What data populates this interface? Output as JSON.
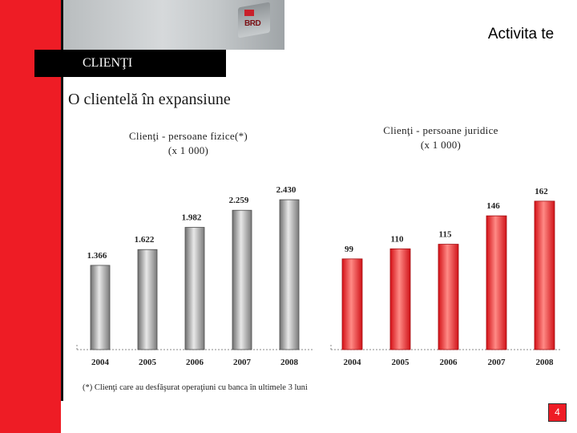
{
  "header": {
    "section_label": "CLIENŢI",
    "activity_title": "Activita te",
    "photo_brand": "BRD"
  },
  "main_title": "O clientelă în expansiune",
  "footnote": "(*) Clienţi care au desfăşurat operaţiuni cu banca în ultimele 3 luni",
  "page_number": "4",
  "colors": {
    "red": "#ee1c25",
    "gray_bar": "#8c8c8c"
  },
  "chart_data": [
    {
      "type": "bar",
      "title": "Clienţi - persoane fizice(*)",
      "subtitle": "(x 1 000)",
      "categories": [
        "2004",
        "2005",
        "2006",
        "2007",
        "2008"
      ],
      "values": [
        1366,
        1622,
        1982,
        2259,
        2430
      ],
      "value_labels": [
        "1.366",
        "1.622",
        "1.982",
        "2.259",
        "2.430"
      ],
      "ylim": [
        0,
        2600
      ],
      "color": "gray",
      "grid": false
    },
    {
      "type": "bar",
      "title": "Clienţi - persoane juridice",
      "subtitle": "(x 1 000)",
      "categories": [
        "2004",
        "2005",
        "2006",
        "2007",
        "2008"
      ],
      "values": [
        99,
        110,
        115,
        146,
        162
      ],
      "value_labels": [
        "99",
        "110",
        "115",
        "146",
        "162"
      ],
      "ylim": [
        0,
        175
      ],
      "color": "red",
      "grid": false
    }
  ]
}
